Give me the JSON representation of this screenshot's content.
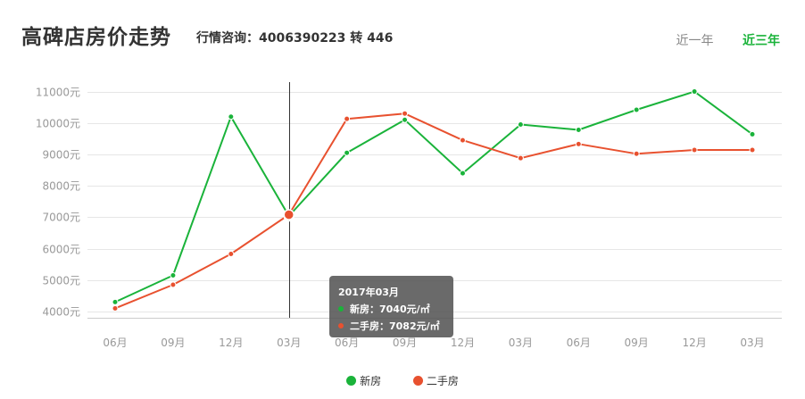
{
  "header": {
    "title": "高碑店房价走势",
    "hotline": "行情咨询：4006390223 转 446",
    "tabs": [
      {
        "label": "近一年",
        "active": false
      },
      {
        "label": "近三年",
        "active": true
      }
    ]
  },
  "colors": {
    "new_house": "#1ab33a",
    "second_hand": "#e8512f",
    "active_tab": "#1ab33a"
  },
  "tooltip": {
    "title": "2017年03月",
    "rows": [
      "新房：7040元/㎡",
      "二手房：7082元/㎡"
    ]
  },
  "chart_data": {
    "type": "line",
    "categories": [
      "06月",
      "09月",
      "12月",
      "03月",
      "06月",
      "09月",
      "12月",
      "03月",
      "06月",
      "09月",
      "12月",
      "03月"
    ],
    "yticks": [
      "4000元",
      "5000元",
      "6000元",
      "7000元",
      "8000元",
      "9000元",
      "10000元",
      "11000元"
    ],
    "ylim": [
      3800,
      11300
    ],
    "series": [
      {
        "name": "新房",
        "values": [
          4300,
          5150,
          10200,
          7040,
          9050,
          10100,
          8400,
          9950,
          9780,
          10420,
          11000,
          9640
        ]
      },
      {
        "name": "二手房",
        "values": [
          4100,
          4850,
          5830,
          7082,
          10130,
          10300,
          9450,
          8880,
          9330,
          9020,
          9140,
          9140
        ]
      }
    ],
    "highlight_index": 3,
    "legend": [
      "新房",
      "二手房"
    ],
    "legend_position": "bottom",
    "grid": true
  }
}
